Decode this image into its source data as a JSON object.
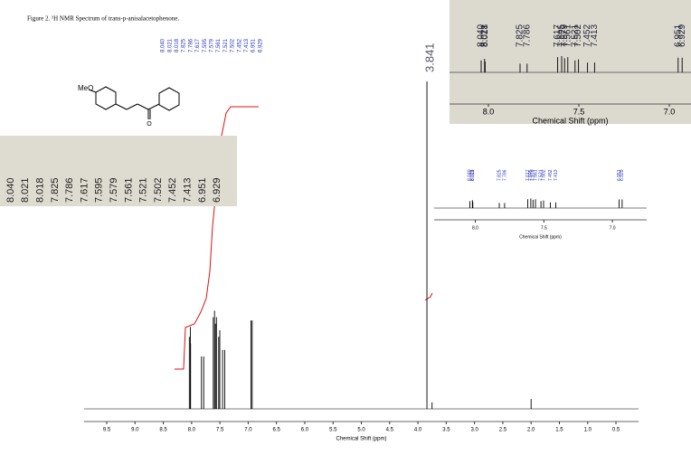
{
  "caption": "Figure 2. ¹H NMR Spectrum of trans-p-anisalacetophenone.",
  "molecule_label": "MeO",
  "chart_data": {
    "type": "stick",
    "xlabel": "Chemical Shift (ppm)",
    "xlim": [
      9.9,
      0.1
    ],
    "ylim": [
      0,
      100
    ],
    "xticks": [
      9.5,
      {
        "value": 9,
        "label": "9.0"
      },
      8.5,
      {
        "value": 8,
        "label": "8.0"
      },
      7.5,
      {
        "value": 7,
        "label": "7.0"
      },
      6.5,
      {
        "value": 6,
        "label": "6.0"
      },
      5.5,
      {
        "value": 5,
        "label": "5.0"
      },
      4.5,
      {
        "value": 4,
        "label": "4.0"
      },
      3.5,
      {
        "value": 3,
        "label": "3.0"
      },
      2.5,
      {
        "value": 2,
        "label": "2.0"
      },
      1.5,
      {
        "value": 1,
        "label": "1.0"
      },
      0.5
    ],
    "x": [
      8.04,
      8.021,
      8.018,
      7.825,
      7.786,
      7.617,
      7.595,
      7.579,
      7.561,
      7.521,
      7.502,
      7.452,
      7.413,
      6.951,
      6.929,
      3.841,
      3.75,
      2.0
    ],
    "peak_labels": [
      "8.040",
      "8.021",
      "8.018",
      "7.825",
      "7.786",
      "7.617",
      "7.595",
      "7.579",
      "7.561",
      "7.521",
      "7.502",
      "7.452",
      "7.413",
      "6.951",
      "6.929",
      "3.841",
      null,
      null
    ],
    "values": [
      22,
      25,
      20,
      16,
      16,
      28,
      30,
      26,
      28,
      22,
      24,
      18,
      18,
      27,
      27,
      100,
      2,
      3
    ],
    "color": "#000000",
    "label_color": "#2a35b8",
    "integral_color": "#e01010",
    "inset": {
      "xlabel": "Chemical Shift (ppm)",
      "xlim": [
        8.3,
        6.75
      ],
      "xticks": [
        {
          "value": 8,
          "label": "8.0"
        },
        7.5,
        {
          "value": 7,
          "label": "7.0"
        }
      ]
    }
  }
}
